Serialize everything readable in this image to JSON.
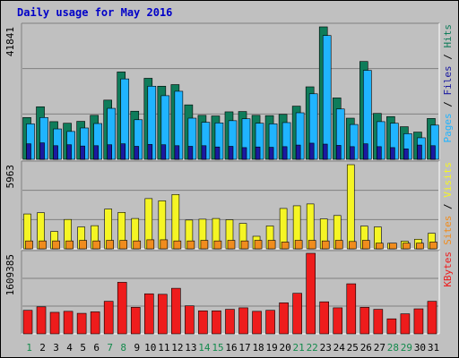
{
  "window": {
    "title": "Daily usage for May 2016"
  },
  "colors": {
    "background": "#c0c0c0",
    "panel": "#c0c0c0",
    "hits": "#0f7c5a",
    "files": "#20b4ff",
    "pages": "#1a1aa0",
    "visits": "#f5f524",
    "sites": "#f08c1e",
    "kbytes": "#ee1c1c",
    "weekend_day": "#138a4c",
    "weekday": "#000000"
  },
  "chart_data": [
    {
      "type": "bar",
      "title": "Daily usage for May 2016",
      "categories": [
        "1",
        "2",
        "3",
        "4",
        "5",
        "6",
        "7",
        "8",
        "9",
        "10",
        "11",
        "12",
        "13",
        "14",
        "15",
        "16",
        "17",
        "18",
        "19",
        "20",
        "21",
        "22",
        "23",
        "24",
        "25",
        "26",
        "27",
        "28",
        "29",
        "30",
        "31"
      ],
      "weekend_days": [
        "1",
        "7",
        "8",
        "14",
        "15",
        "21",
        "22",
        "28",
        "29"
      ],
      "ymax_label": "41841",
      "ylim": [
        0,
        41841
      ],
      "right_label": [
        "Pages",
        "Files",
        "Hits"
      ],
      "series": [
        {
          "name": "Hits",
          "values": [
            13200,
            16600,
            11900,
            11400,
            12000,
            13900,
            18700,
            27600,
            15200,
            25600,
            23100,
            23600,
            17200,
            13900,
            13700,
            15000,
            15100,
            13900,
            13800,
            14200,
            16800,
            22900,
            41841,
            19400,
            13000,
            30900,
            14500,
            13500,
            10300,
            8600,
            12900
          ]
        },
        {
          "name": "Files",
          "values": [
            11200,
            13200,
            9600,
            8800,
            9900,
            11300,
            16100,
            25400,
            12500,
            23100,
            20100,
            21500,
            13000,
            11700,
            11500,
            12200,
            12800,
            11400,
            11200,
            11600,
            14700,
            20700,
            39100,
            15900,
            11000,
            28100,
            11900,
            11400,
            8100,
            6800,
            10800
          ]
        },
        {
          "name": "Pages",
          "values": [
            4900,
            5200,
            4300,
            4600,
            4200,
            4300,
            4600,
            4900,
            4100,
            4700,
            4600,
            4300,
            4100,
            4300,
            3900,
            4100,
            3700,
            3900,
            3800,
            4000,
            4500,
            5100,
            4800,
            4400,
            4000,
            4900,
            4000,
            3700,
            3300,
            4500,
            4300
          ]
        }
      ]
    },
    {
      "type": "bar",
      "ymax_label": "5963",
      "ylim": [
        0,
        5963
      ],
      "right_label": [
        "Sites",
        "Visits"
      ],
      "series": [
        {
          "name": "Visits",
          "values": [
            2470,
            2560,
            1230,
            2080,
            1550,
            1640,
            2820,
            2580,
            2150,
            3560,
            3400,
            3850,
            2040,
            2100,
            2150,
            2060,
            1800,
            890,
            1620,
            2860,
            3050,
            3180,
            2120,
            2360,
            5963,
            1610,
            1550,
            390,
            540,
            680,
            1100
          ]
        },
        {
          "name": "Sites",
          "values": [
            560,
            560,
            560,
            560,
            600,
            560,
            600,
            600,
            560,
            640,
            640,
            560,
            560,
            600,
            560,
            600,
            560,
            600,
            600,
            480,
            600,
            600,
            560,
            600,
            520,
            600,
            400,
            400,
            400,
            400,
            480
          ]
        }
      ]
    },
    {
      "type": "bar",
      "ymax_label": "1609385",
      "ylim": [
        0,
        1609385
      ],
      "right_label": [
        "KBytes"
      ],
      "series": [
        {
          "name": "KBytes",
          "values": [
            470000,
            540000,
            430000,
            450000,
            410000,
            440000,
            650000,
            1030000,
            530000,
            800000,
            790000,
            910000,
            560000,
            460000,
            460000,
            490000,
            520000,
            450000,
            470000,
            620000,
            810000,
            1609385,
            640000,
            520000,
            1000000,
            530000,
            490000,
            300000,
            400000,
            500000,
            650000
          ]
        }
      ]
    }
  ]
}
